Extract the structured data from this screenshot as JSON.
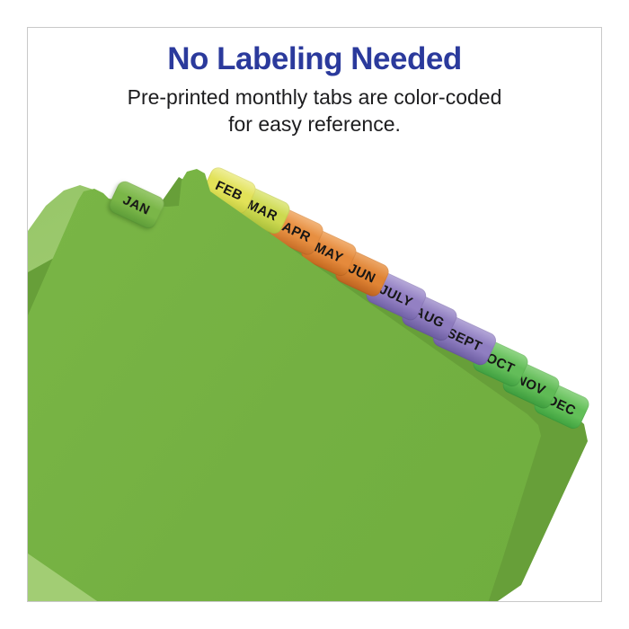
{
  "header": {
    "title": "No Labeling Needed",
    "subtitle_line1": "Pre-printed monthly tabs are color-coded",
    "subtitle_line2": "for easy reference."
  },
  "colors": {
    "title_blue": "#2b3a9c",
    "body_text": "#1d1d1f",
    "frame_border": "#c9c9c9",
    "sheet_front": "#74b042",
    "sheet_front_light": "#7bb747",
    "sheet_front_deep": "#6fae3e",
    "sheet_stack": "#679f39",
    "sheet_back_light": "#a2cd74",
    "sheet_back_light_top": "#8fc160",
    "tab_text": "#161616"
  },
  "tabs": [
    {
      "label": "JAN",
      "color": "#7ab648",
      "color_light": "#99c96e",
      "color_dark": "#5d9c38"
    },
    {
      "label": "FEB",
      "color": "#e2e258",
      "color_light": "#efef9b",
      "color_dark": "#bfc93f"
    },
    {
      "label": "MAR",
      "color": "#cdd950",
      "color_light": "#e2ea8c",
      "color_dark": "#a9bf3a"
    },
    {
      "label": "APR",
      "color": "#e78f41",
      "color_light": "#f3b67c",
      "color_dark": "#c66d27"
    },
    {
      "label": "MAY",
      "color": "#e58a3c",
      "color_light": "#f2b073",
      "color_dark": "#c3681f"
    },
    {
      "label": "JUN",
      "color": "#e08434",
      "color_light": "#eda768",
      "color_dark": "#bc6220"
    },
    {
      "label": "JULY",
      "color": "#9380c3",
      "color_light": "#b7aad9",
      "color_dark": "#6f60a5"
    },
    {
      "label": "AUG",
      "color": "#8d7bbe",
      "color_light": "#b2a5d6",
      "color_dark": "#6a5b9f"
    },
    {
      "label": "SEPT",
      "color": "#8f7ec1",
      "color_light": "#b4a7d8",
      "color_dark": "#6c5da1"
    },
    {
      "label": "OCT",
      "color": "#63bd59",
      "color_light": "#92d687",
      "color_dark": "#3f9f40"
    },
    {
      "label": "NOV",
      "color": "#5fba55",
      "color_light": "#8ed383",
      "color_dark": "#3c9c3d"
    },
    {
      "label": "DEC",
      "color": "#62bf58",
      "color_light": "#91d586",
      "color_dark": "#3fa23f"
    }
  ]
}
